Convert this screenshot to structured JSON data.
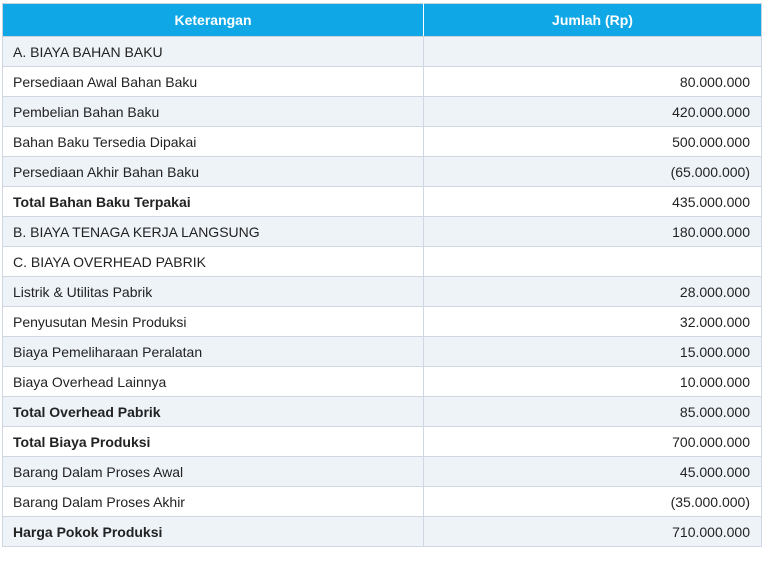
{
  "table": {
    "headers": {
      "description": "Keterangan",
      "amount": "Jumlah (Rp)"
    },
    "rows": [
      {
        "label": "A. BIAYA BAHAN BAKU",
        "amount": "",
        "bold": false
      },
      {
        "label": "Persediaan Awal Bahan Baku",
        "amount": "80.000.000",
        "bold": false
      },
      {
        "label": "Pembelian Bahan Baku",
        "amount": "420.000.000",
        "bold": false
      },
      {
        "label": "Bahan Baku Tersedia Dipakai",
        "amount": "500.000.000",
        "bold": false
      },
      {
        "label": "Persediaan Akhir Bahan Baku",
        "amount": "(65.000.000)",
        "bold": false
      },
      {
        "label": "Total Bahan Baku Terpakai",
        "amount": "435.000.000",
        "bold": true
      },
      {
        "label": "B. BIAYA TENAGA KERJA LANGSUNG",
        "amount": "180.000.000",
        "bold": false
      },
      {
        "label": "C. BIAYA OVERHEAD PABRIK",
        "amount": "",
        "bold": false
      },
      {
        "label": "Listrik & Utilitas Pabrik",
        "amount": "28.000.000",
        "bold": false
      },
      {
        "label": "Penyusutan Mesin Produksi",
        "amount": "32.000.000",
        "bold": false
      },
      {
        "label": "Biaya Pemeliharaan Peralatan",
        "amount": "15.000.000",
        "bold": false
      },
      {
        "label": "Biaya Overhead Lainnya",
        "amount": "10.000.000",
        "bold": false
      },
      {
        "label": "Total Overhead Pabrik",
        "amount": "85.000.000",
        "bold": true
      },
      {
        "label": "Total Biaya Produksi",
        "amount": "700.000.000",
        "bold": true
      },
      {
        "label": "Barang Dalam Proses Awal",
        "amount": "45.000.000",
        "bold": false
      },
      {
        "label": "Barang Dalam Proses Akhir",
        "amount": "(35.000.000)",
        "bold": false
      },
      {
        "label": "Harga Pokok Produksi",
        "amount": "710.000.000",
        "bold": true
      }
    ]
  }
}
